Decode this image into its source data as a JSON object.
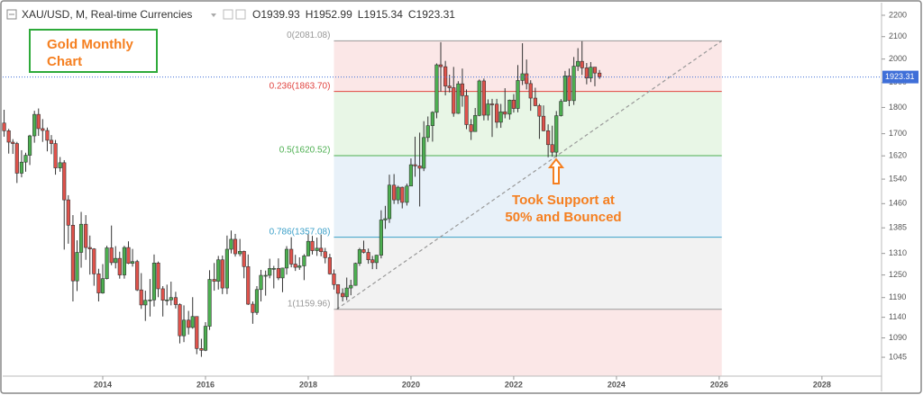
{
  "chart_data": {
    "type": "candlestick",
    "header": {
      "symbol": "XAU/USD, M, Real-time Currencies",
      "field_labels": [
        "O",
        "H",
        "L",
        "C"
      ]
    },
    "annotations": {
      "title_lines": [
        "Gold Monthly",
        "Chart"
      ],
      "note_lines": [
        "Took Support at",
        "50% and Bounced"
      ]
    },
    "xlim": [
      2012.0,
      2029.16
    ],
    "xticks": [
      2014,
      2016,
      2018,
      2020,
      2022,
      2024,
      2026,
      2028
    ],
    "ylim": [
      1003,
      2239
    ],
    "log_scale": true,
    "yticks": [
      1045,
      1090,
      1140,
      1190,
      1250,
      1310,
      1385,
      1460,
      1540,
      1620,
      1700,
      1800,
      1900,
      2000,
      2100,
      2200
    ],
    "up_color": "#4caf50",
    "down_color": "#e0524b",
    "price_line_color": "#3f6fd8",
    "fib": {
      "x": [
        2018.5,
        2026.05
      ],
      "levels": [
        {
          "label": "0(2081.08)",
          "value": 2081.08,
          "color": "#999999"
        },
        {
          "label": "0.236(1863.70)",
          "value": 1863.7,
          "color": "#e0433f"
        },
        {
          "label": "0.5(1620.52)",
          "value": 1620.52,
          "color": "#4caf50"
        },
        {
          "label": "0.786(1357.08)",
          "value": 1357.08,
          "color": "#3a9fc8"
        },
        {
          "label": "1(1159.96)",
          "value": 1159.96,
          "color": "#999999"
        }
      ],
      "band_colors": [
        "#fbe7e7",
        "#e8f6e6",
        "#e8f1f9",
        "#f2f2f2",
        "#fbe7e7"
      ]
    },
    "trendline": {
      "x": [
        2018.55,
        2026.05
      ],
      "y": [
        1160,
        2081
      ]
    },
    "x": [
      2012.08,
      2012.17,
      2012.25,
      2012.33,
      2012.42,
      2012.5,
      2012.58,
      2012.67,
      2012.75,
      2012.83,
      2012.92,
      2013.0,
      2013.08,
      2013.17,
      2013.25,
      2013.33,
      2013.42,
      2013.5,
      2013.58,
      2013.67,
      2013.75,
      2013.83,
      2013.92,
      2014.0,
      2014.08,
      2014.17,
      2014.25,
      2014.33,
      2014.42,
      2014.5,
      2014.58,
      2014.67,
      2014.75,
      2014.83,
      2014.92,
      2015.0,
      2015.08,
      2015.17,
      2015.25,
      2015.33,
      2015.42,
      2015.5,
      2015.58,
      2015.67,
      2015.75,
      2015.83,
      2015.92,
      2016.0,
      2016.08,
      2016.17,
      2016.25,
      2016.33,
      2016.42,
      2016.5,
      2016.58,
      2016.67,
      2016.75,
      2016.83,
      2016.92,
      2017.0,
      2017.08,
      2017.17,
      2017.25,
      2017.33,
      2017.42,
      2017.5,
      2017.58,
      2017.67,
      2017.75,
      2017.83,
      2017.92,
      2018.0,
      2018.08,
      2018.17,
      2018.25,
      2018.33,
      2018.42,
      2018.5,
      2018.58,
      2018.67,
      2018.75,
      2018.83,
      2018.92,
      2019.0,
      2019.08,
      2019.17,
      2019.25,
      2019.33,
      2019.42,
      2019.5,
      2019.58,
      2019.67,
      2019.75,
      2019.83,
      2019.92,
      2020.0,
      2020.08,
      2020.17,
      2020.25,
      2020.33,
      2020.42,
      2020.5,
      2020.58,
      2020.67,
      2020.75,
      2020.83,
      2020.92,
      2021.0,
      2021.08,
      2021.17,
      2021.25,
      2021.33,
      2021.42,
      2021.5,
      2021.58,
      2021.67,
      2021.75,
      2021.83,
      2021.92,
      2022.0,
      2022.08,
      2022.17,
      2022.25,
      2022.33,
      2022.42,
      2022.5,
      2022.58,
      2022.67,
      2022.75,
      2022.83,
      2022.92,
      2023.0,
      2023.08,
      2023.17,
      2023.25,
      2023.33,
      2023.42,
      2023.5,
      2023.58,
      2023.67
    ],
    "ohlc": [
      [
        1740,
        1791,
        1689,
        1711
      ],
      [
        1711,
        1718,
        1628,
        1669
      ],
      [
        1669,
        1680,
        1627,
        1664
      ],
      [
        1664,
        1670,
        1527,
        1560
      ],
      [
        1560,
        1640,
        1546,
        1598
      ],
      [
        1598,
        1631,
        1565,
        1622
      ],
      [
        1622,
        1696,
        1588,
        1692
      ],
      [
        1692,
        1787,
        1667,
        1773
      ],
      [
        1773,
        1796,
        1692,
        1719
      ],
      [
        1719,
        1755,
        1670,
        1712
      ],
      [
        1712,
        1723,
        1636,
        1676
      ],
      [
        1676,
        1695,
        1626,
        1664
      ],
      [
        1664,
        1677,
        1555,
        1578
      ],
      [
        1578,
        1616,
        1565,
        1596
      ],
      [
        1596,
        1605,
        1321,
        1472
      ],
      [
        1472,
        1487,
        1338,
        1393
      ],
      [
        1393,
        1424,
        1180,
        1234
      ],
      [
        1234,
        1348,
        1207,
        1313
      ],
      [
        1313,
        1434,
        1270,
        1396
      ],
      [
        1396,
        1424,
        1292,
        1327
      ],
      [
        1327,
        1362,
        1251,
        1323
      ],
      [
        1323,
        1325,
        1221,
        1253
      ],
      [
        1253,
        1267,
        1180,
        1202
      ],
      [
        1202,
        1280,
        1200,
        1240
      ],
      [
        1240,
        1332,
        1238,
        1326
      ],
      [
        1326,
        1392,
        1277,
        1284
      ],
      [
        1284,
        1331,
        1268,
        1296
      ],
      [
        1296,
        1315,
        1240,
        1250
      ],
      [
        1250,
        1332,
        1240,
        1327
      ],
      [
        1327,
        1345,
        1280,
        1282
      ],
      [
        1282,
        1323,
        1273,
        1287
      ],
      [
        1287,
        1292,
        1207,
        1210
      ],
      [
        1210,
        1255,
        1161,
        1171
      ],
      [
        1171,
        1208,
        1131,
        1183
      ],
      [
        1183,
        1239,
        1142,
        1184
      ],
      [
        1184,
        1307,
        1167,
        1283
      ],
      [
        1283,
        1287,
        1191,
        1213
      ],
      [
        1213,
        1220,
        1142,
        1183
      ],
      [
        1183,
        1224,
        1170,
        1184
      ],
      [
        1184,
        1232,
        1170,
        1190
      ],
      [
        1190,
        1205,
        1162,
        1172
      ],
      [
        1172,
        1175,
        1077,
        1095
      ],
      [
        1095,
        1170,
        1080,
        1133
      ],
      [
        1133,
        1156,
        1098,
        1115
      ],
      [
        1115,
        1191,
        1112,
        1142
      ],
      [
        1142,
        1142,
        1052,
        1065
      ],
      [
        1065,
        1088,
        1046,
        1061
      ],
      [
        1061,
        1128,
        1059,
        1118
      ],
      [
        1118,
        1263,
        1109,
        1238
      ],
      [
        1238,
        1283,
        1208,
        1233
      ],
      [
        1233,
        1303,
        1211,
        1292
      ],
      [
        1292,
        1304,
        1199,
        1215
      ],
      [
        1215,
        1362,
        1199,
        1322
      ],
      [
        1322,
        1377,
        1310,
        1351
      ],
      [
        1351,
        1367,
        1301,
        1309
      ],
      [
        1309,
        1352,
        1302,
        1316
      ],
      [
        1316,
        1318,
        1241,
        1273
      ],
      [
        1273,
        1307,
        1171,
        1173
      ],
      [
        1173,
        1180,
        1124,
        1152
      ],
      [
        1152,
        1220,
        1146,
        1211
      ],
      [
        1211,
        1264,
        1180,
        1249
      ],
      [
        1249,
        1262,
        1195,
        1249
      ],
      [
        1249,
        1295,
        1241,
        1268
      ],
      [
        1268,
        1275,
        1214,
        1268
      ],
      [
        1268,
        1296,
        1236,
        1242
      ],
      [
        1242,
        1270,
        1204,
        1269
      ],
      [
        1269,
        1331,
        1251,
        1322
      ],
      [
        1322,
        1357,
        1271,
        1280
      ],
      [
        1280,
        1306,
        1261,
        1271
      ],
      [
        1271,
        1299,
        1264,
        1275
      ],
      [
        1275,
        1308,
        1236,
        1303
      ],
      [
        1303,
        1366,
        1302,
        1345
      ],
      [
        1345,
        1361,
        1307,
        1318
      ],
      [
        1318,
        1356,
        1303,
        1325
      ],
      [
        1325,
        1365,
        1302,
        1315
      ],
      [
        1315,
        1326,
        1282,
        1298
      ],
      [
        1298,
        1309,
        1251,
        1253
      ],
      [
        1253,
        1265,
        1211,
        1224
      ],
      [
        1224,
        1225,
        1160,
        1201
      ],
      [
        1201,
        1214,
        1180,
        1192
      ],
      [
        1192,
        1243,
        1183,
        1215
      ],
      [
        1215,
        1237,
        1196,
        1222
      ],
      [
        1222,
        1284,
        1221,
        1282
      ],
      [
        1282,
        1326,
        1275,
        1321
      ],
      [
        1321,
        1347,
        1310,
        1313
      ],
      [
        1313,
        1324,
        1281,
        1292
      ],
      [
        1292,
        1303,
        1266,
        1284
      ],
      [
        1284,
        1306,
        1266,
        1305
      ],
      [
        1305,
        1439,
        1296,
        1409
      ],
      [
        1409,
        1453,
        1382,
        1413
      ],
      [
        1413,
        1555,
        1400,
        1520
      ],
      [
        1520,
        1557,
        1459,
        1472
      ],
      [
        1472,
        1518,
        1459,
        1513
      ],
      [
        1513,
        1515,
        1445,
        1464
      ],
      [
        1464,
        1525,
        1454,
        1517
      ],
      [
        1517,
        1611,
        1517,
        1589
      ],
      [
        1589,
        1689,
        1548,
        1585
      ],
      [
        1585,
        1704,
        1451,
        1577
      ],
      [
        1577,
        1747,
        1567,
        1686
      ],
      [
        1686,
        1765,
        1670,
        1730
      ],
      [
        1730,
        1785,
        1671,
        1781
      ],
      [
        1781,
        1981,
        1758,
        1975
      ],
      [
        1975,
        2075,
        1863,
        1967
      ],
      [
        1967,
        1992,
        1848,
        1886
      ],
      [
        1886,
        1933,
        1860,
        1879
      ],
      [
        1879,
        1966,
        1764,
        1777
      ],
      [
        1777,
        1906,
        1775,
        1895
      ],
      [
        1895,
        1959,
        1803,
        1847
      ],
      [
        1847,
        1872,
        1717,
        1734
      ],
      [
        1734,
        1755,
        1677,
        1708
      ],
      [
        1708,
        1798,
        1707,
        1769
      ],
      [
        1769,
        1913,
        1766,
        1907
      ],
      [
        1907,
        1917,
        1750,
        1770
      ],
      [
        1770,
        1832,
        1750,
        1814
      ],
      [
        1814,
        1834,
        1688,
        1813
      ],
      [
        1813,
        1834,
        1721,
        1743
      ],
      [
        1743,
        1814,
        1722,
        1783
      ],
      [
        1783,
        1877,
        1758,
        1774
      ],
      [
        1774,
        1831,
        1753,
        1829
      ],
      [
        1829,
        1853,
        1780,
        1796
      ],
      [
        1796,
        1974,
        1781,
        1909
      ],
      [
        1909,
        2070,
        1890,
        1937
      ],
      [
        1937,
        1998,
        1872,
        1896
      ],
      [
        1896,
        1910,
        1787,
        1837
      ],
      [
        1837,
        1879,
        1805,
        1807
      ],
      [
        1807,
        1814,
        1681,
        1766
      ],
      [
        1766,
        1808,
        1709,
        1711
      ],
      [
        1711,
        1735,
        1615,
        1660
      ],
      [
        1660,
        1730,
        1617,
        1633
      ],
      [
        1633,
        1786,
        1616,
        1768
      ],
      [
        1768,
        1833,
        1765,
        1824
      ],
      [
        1824,
        1949,
        1823,
        1928
      ],
      [
        1928,
        1959,
        1805,
        1827
      ],
      [
        1827,
        2009,
        1810,
        1969
      ],
      [
        1969,
        2048,
        1949,
        1990
      ],
      [
        1990,
        2079,
        1932,
        1962
      ],
      [
        1962,
        1983,
        1893,
        1919
      ],
      [
        1919,
        1987,
        1902,
        1965
      ],
      [
        1965,
        1966,
        1885,
        1940
      ],
      [
        1939.93,
        1952.99,
        1915.34,
        1923.31
      ]
    ]
  }
}
